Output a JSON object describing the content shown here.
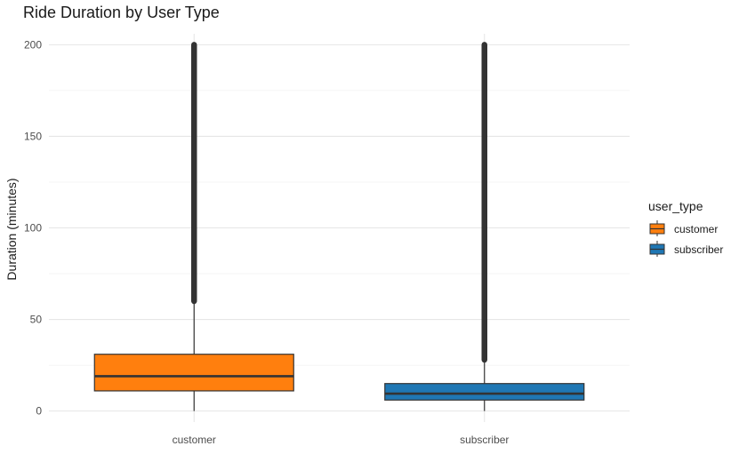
{
  "chart_data": {
    "type": "boxplot",
    "title": "Ride Duration by User Type",
    "xlabel": "",
    "ylabel": "Duration (minutes)",
    "ylim": [
      -6,
      206
    ],
    "yticks": [
      0,
      50,
      100,
      150,
      200
    ],
    "categories": [
      "customer",
      "subscriber"
    ],
    "grid": true,
    "legend": {
      "title": "user_type",
      "position": "right",
      "entries": [
        "customer",
        "subscriber"
      ]
    },
    "series": [
      {
        "name": "customer",
        "color": "#ff7f0e",
        "min": 0,
        "q1": 11,
        "median": 19,
        "q3": 31,
        "whisker_high": 60,
        "outliers_range": [
          60,
          200
        ]
      },
      {
        "name": "subscriber",
        "color": "#1f77b4",
        "min": 0,
        "q1": 6,
        "median": 9.5,
        "q3": 15,
        "whisker_high": 28,
        "outliers_range": [
          28,
          200
        ]
      }
    ]
  }
}
